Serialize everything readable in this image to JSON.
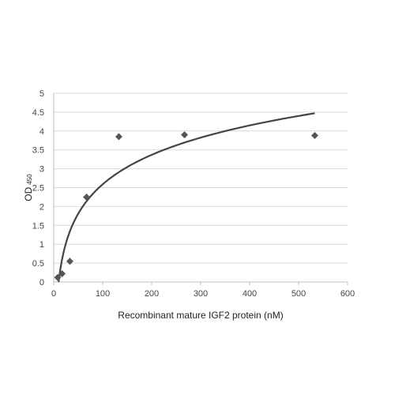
{
  "chart_data": {
    "type": "scatter",
    "xlabel": "Recombinant mature IGF2 protein (nM)",
    "ylabel": "OD",
    "ylabel_subscript": "450",
    "xlim": [
      0,
      600
    ],
    "ylim": [
      0,
      5
    ],
    "x_ticks": [
      "0",
      "100",
      "200",
      "300",
      "400",
      "500",
      "600"
    ],
    "y_ticks": [
      "0",
      "0.5",
      "1",
      "1.5",
      "2",
      "2.5",
      "3",
      "3.5",
      "4",
      "4.5",
      "5"
    ],
    "grid": "horizontal",
    "legend": "none",
    "points": [
      {
        "x": 8,
        "y": 0.12
      },
      {
        "x": 17,
        "y": 0.22
      },
      {
        "x": 33,
        "y": 0.55
      },
      {
        "x": 67,
        "y": 2.25
      },
      {
        "x": 133,
        "y": 3.85
      },
      {
        "x": 267,
        "y": 3.9
      },
      {
        "x": 533,
        "y": 3.88
      }
    ],
    "trendline": {
      "type": "logarithmic",
      "x_range": [
        10,
        533
      ],
      "y_at_start": 0.0,
      "y_at_end": 4.47
    },
    "colors": {
      "marker": "#555555",
      "trendline": "#444444",
      "grid": "#d9d9d9",
      "axis": "#bfbfbf"
    }
  }
}
